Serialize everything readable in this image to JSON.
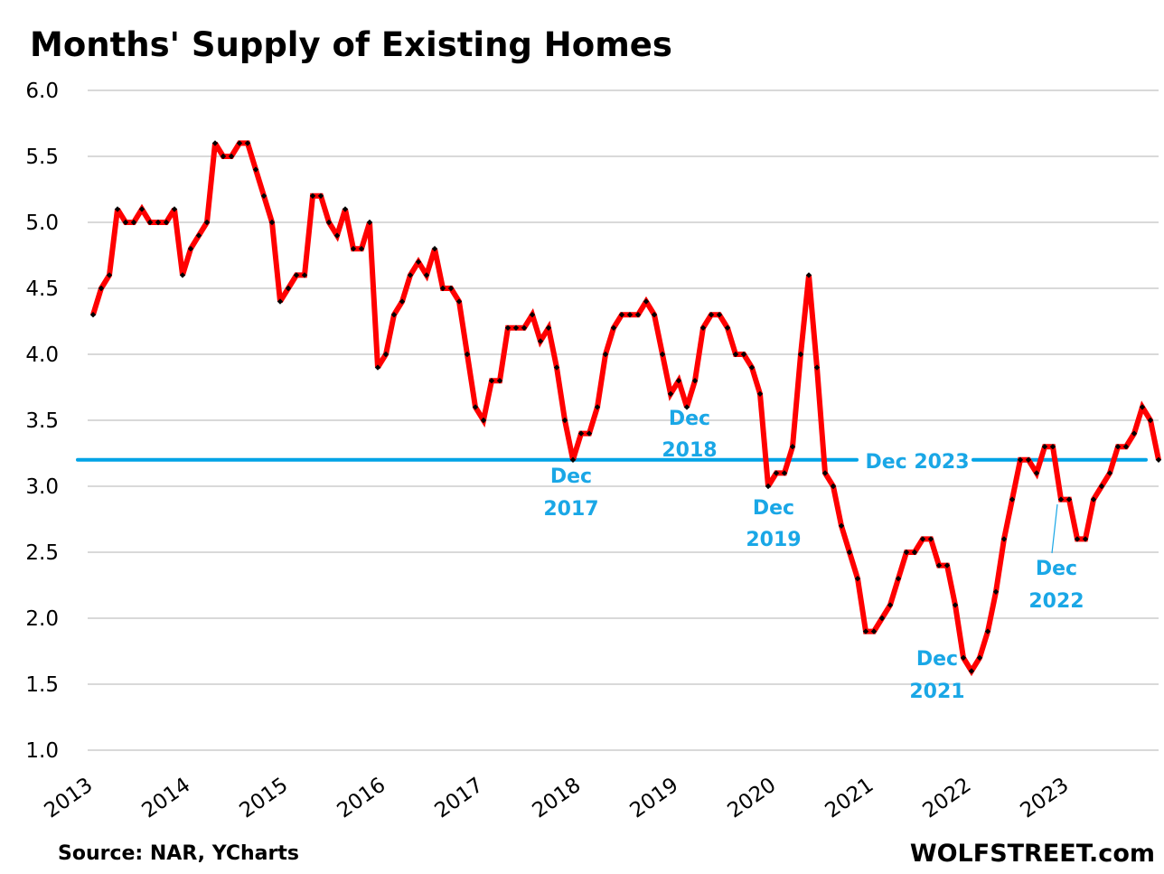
{
  "chart_data": {
    "type": "line",
    "title": "Months' Supply of Existing Homes",
    "xlabel": "",
    "ylabel": "",
    "ylim": [
      1.0,
      6.0
    ],
    "yticks": [
      "6.0",
      "5.5",
      "5.0",
      "4.5",
      "4.0",
      "3.5",
      "3.0",
      "2.5",
      "2.0",
      "1.5",
      "1.0"
    ],
    "xticks": [
      "2013",
      "2014",
      "2015",
      "2016",
      "2017",
      "2018",
      "2019",
      "2020",
      "2021",
      "2022",
      "2023"
    ],
    "grid": true,
    "series": [
      {
        "name": "Months' Supply",
        "color": "#ff0000",
        "marker_color": "#000000",
        "values": [
          4.3,
          4.5,
          4.6,
          5.1,
          5.0,
          5.0,
          5.1,
          5.0,
          5.0,
          5.0,
          5.1,
          4.6,
          4.8,
          4.9,
          5.0,
          5.6,
          5.5,
          5.5,
          5.6,
          5.6,
          5.4,
          5.2,
          5.0,
          4.4,
          4.5,
          4.6,
          4.6,
          5.2,
          5.2,
          5.0,
          4.9,
          5.1,
          4.8,
          4.8,
          5.0,
          3.9,
          4.0,
          4.3,
          4.4,
          4.6,
          4.7,
          4.6,
          4.8,
          4.5,
          4.5,
          4.4,
          4.0,
          3.6,
          3.5,
          3.8,
          3.8,
          4.2,
          4.2,
          4.2,
          4.3,
          4.1,
          4.2,
          3.9,
          3.5,
          3.2,
          3.4,
          3.4,
          3.6,
          4.0,
          4.2,
          4.3,
          4.3,
          4.3,
          4.4,
          4.3,
          4.0,
          3.7,
          3.8,
          3.6,
          3.8,
          4.2,
          4.3,
          4.3,
          4.2,
          4.0,
          4.0,
          3.9,
          3.7,
          3.0,
          3.1,
          3.1,
          3.3,
          4.0,
          4.6,
          3.9,
          3.1,
          3.0,
          2.7,
          2.5,
          2.3,
          1.9,
          1.9,
          2.0,
          2.1,
          2.3,
          2.5,
          2.5,
          2.6,
          2.6,
          2.4,
          2.4,
          2.1,
          1.7,
          1.6,
          1.7,
          1.9,
          2.2,
          2.6,
          2.9,
          3.2,
          3.2,
          3.1,
          3.3,
          3.3,
          2.9,
          2.9,
          2.6,
          2.6,
          2.9,
          3.0,
          3.1,
          3.3,
          3.3,
          3.4,
          3.6,
          3.5,
          3.2
        ]
      }
    ],
    "reference_line": {
      "value": 3.2,
      "color": "#00a3e6",
      "label": "Dec 2023"
    },
    "annotations": [
      {
        "line1": "Dec",
        "line2": "2017",
        "index": 59
      },
      {
        "line1": "Dec",
        "line2": "2018",
        "index": 73
      },
      {
        "line1": "Dec",
        "line2": "2019",
        "index": 83
      },
      {
        "line1": "Dec",
        "line2": "2021",
        "index": 108
      },
      {
        "line1": "Dec",
        "line2": "2022",
        "index": 119
      }
    ],
    "annotation_color": "#1aa7e6"
  },
  "footer": {
    "source": "Source: NAR, YCharts",
    "brand": "WOLFSTREET.com"
  }
}
